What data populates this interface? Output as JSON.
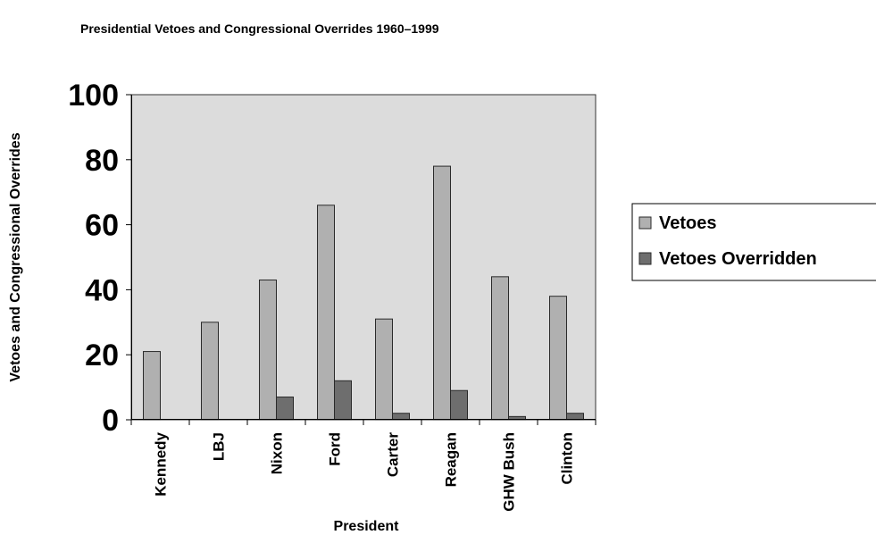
{
  "chart_data": {
    "type": "bar",
    "title": "Presidential Vetoes and Congressional Overrides 1960–1999",
    "xlabel": "President",
    "ylabel": "Vetoes and Congressional Overrides",
    "categories": [
      "Kennedy",
      "LBJ",
      "Nixon",
      "Ford",
      "Carter",
      "Reagan",
      "GHW Bush",
      "Clinton"
    ],
    "series": [
      {
        "name": "Vetoes",
        "values": [
          21,
          30,
          43,
          66,
          31,
          78,
          44,
          38
        ],
        "color": "#b0b0b0"
      },
      {
        "name": "Vetoes Overridden",
        "values": [
          0,
          0,
          7,
          12,
          2,
          9,
          1,
          2
        ],
        "color": "#6e6e6e"
      }
    ],
    "ylim": [
      0,
      100
    ],
    "yticks": [
      0,
      20,
      40,
      60,
      80,
      100
    ],
    "grid": false,
    "plot_background": "#dcdcdc",
    "legend_position": "right"
  }
}
